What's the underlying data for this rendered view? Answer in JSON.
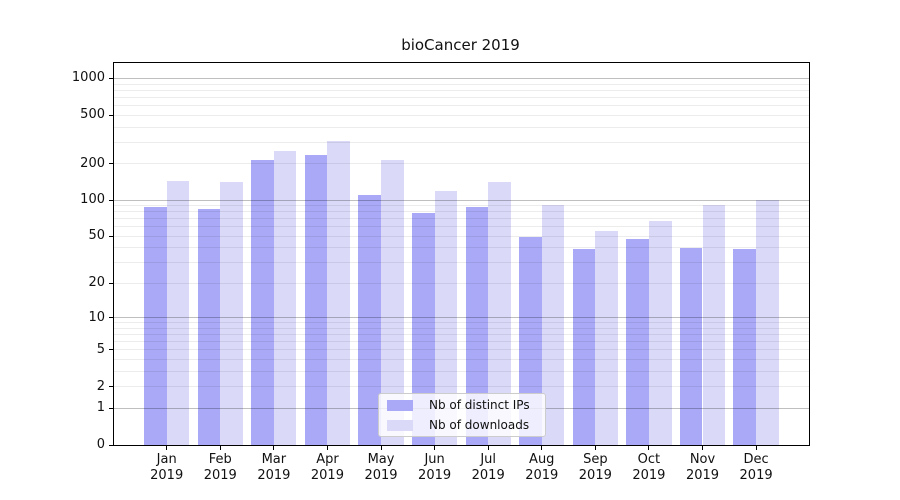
{
  "chart_data": {
    "type": "bar",
    "title": "bioCancer 2019",
    "scale": "log1p",
    "grid": "horizontal",
    "legend_position": "lower center",
    "categories": [
      "Jan",
      "Feb",
      "Mar",
      "Apr",
      "May",
      "Jun",
      "Jul",
      "Aug",
      "Sep",
      "Oct",
      "Nov",
      "Dec"
    ],
    "year": "2019",
    "series": [
      {
        "name": "Nb of distinct IPs",
        "color": "#a9a9f8",
        "values": [
          87,
          85,
          214,
          234,
          110,
          79,
          87,
          49,
          39,
          48,
          40,
          39
        ]
      },
      {
        "name": "Nb of downloads",
        "color": "#dadaf8",
        "values": [
          145,
          142,
          254,
          307,
          214,
          120,
          142,
          91,
          55,
          67,
          92,
          100
        ]
      }
    ],
    "y_ticks": [
      1000,
      500,
      200,
      100,
      50,
      20,
      10,
      5,
      2,
      1,
      0
    ],
    "major_gridlines": [
      1,
      10,
      100,
      1000
    ],
    "minor_gridlines": [
      2,
      3,
      4,
      5,
      6,
      7,
      8,
      9,
      20,
      30,
      40,
      50,
      60,
      70,
      80,
      90,
      200,
      300,
      400,
      500,
      600,
      700,
      800,
      900
    ],
    "ylim": [
      0,
      1330
    ],
    "colors": {
      "axis": "#000000",
      "text": "#111111",
      "grid_minor": "rgba(0,0,0,0.075)",
      "grid_major": "rgba(0,0,0,0.25)",
      "legend_bg": "rgba(255,255,255,0.8)",
      "legend_border": "#cccccc",
      "background": "#ffffff"
    }
  }
}
